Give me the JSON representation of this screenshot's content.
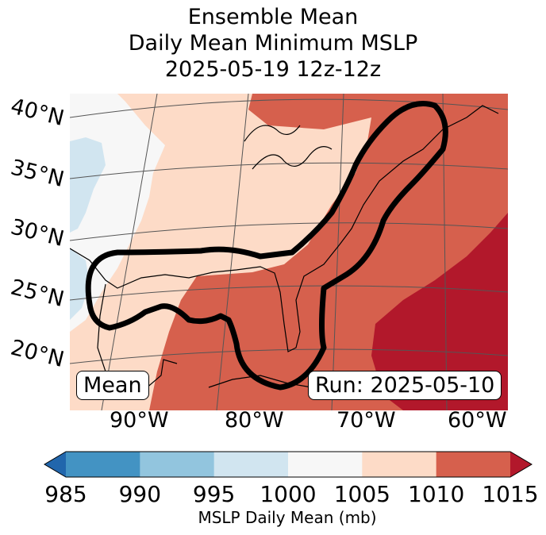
{
  "title": {
    "line1": "Ensemble Mean",
    "line2": "Daily Mean Minimum MSLP",
    "line3": "2025-05-19 12z-12z"
  },
  "map": {
    "lat_labels": [
      "40°N",
      "35°N",
      "30°N",
      "25°N",
      "20°N"
    ],
    "lon_labels": [
      "90°W",
      "80°W",
      "70°W",
      "60°W"
    ],
    "mean_label": "Mean",
    "run_label": "Run: 2025-05-10"
  },
  "colorbar": {
    "ticks": [
      "985",
      "990",
      "995",
      "1000",
      "1005",
      "1010",
      "1015"
    ],
    "label": "MSLP Daily Mean (mb)",
    "colors": [
      "#2166ac",
      "#4393c3",
      "#92c5de",
      "#d1e5f0",
      "#f7f7f7",
      "#fddbc7",
      "#d6604d",
      "#b2182b"
    ]
  }
}
